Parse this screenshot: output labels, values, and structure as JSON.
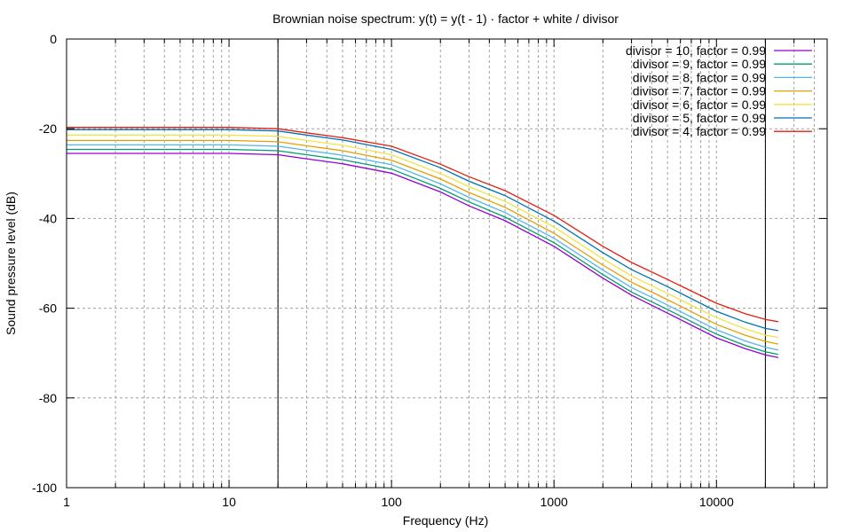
{
  "chart_data": {
    "type": "line",
    "title": "Brownian noise spectrum: y(t) = y(t - 1) · factor + white / divisor",
    "xlabel": "Frequency (Hz)",
    "ylabel": "Sound pressure level (dB)",
    "xscale": "log",
    "xlim": [
      1,
      48000
    ],
    "ylim": [
      -100,
      0
    ],
    "xticks": [
      {
        "value": 1,
        "label": "1"
      },
      {
        "value": 10,
        "label": "10"
      },
      {
        "value": 100,
        "label": "100"
      },
      {
        "value": 1000,
        "label": "1000"
      },
      {
        "value": 10000,
        "label": "10000"
      }
    ],
    "yticks": [
      {
        "value": 0,
        "label": "0"
      },
      {
        "value": -20,
        "label": "-20"
      },
      {
        "value": -40,
        "label": "-40"
      },
      {
        "value": -60,
        "label": "-60"
      },
      {
        "value": -80,
        "label": "-80"
      },
      {
        "value": -100,
        "label": "-100"
      }
    ],
    "grid": true,
    "reference_lines_x": [
      20,
      20000
    ],
    "legend_position": "top-right",
    "x": [
      1,
      2,
      5,
      10,
      20,
      30,
      50,
      100,
      200,
      300,
      500,
      1000,
      2000,
      3000,
      5000,
      10000,
      15000,
      20000,
      24000
    ],
    "series": [
      {
        "name": "divisor = 10, factor = 0.99",
        "color": "#9400d3",
        "values": [
          -25.5,
          -25.5,
          -25.5,
          -25.5,
          -25.8,
          -26.7,
          -27.8,
          -29.9,
          -34.1,
          -37.2,
          -40.5,
          -46.2,
          -53.3,
          -57.1,
          -61.1,
          -66.6,
          -69.0,
          -70.4,
          -71.0
        ]
      },
      {
        "name": "divisor = 9, factor = 0.99",
        "color": "#009e73",
        "values": [
          -24.6,
          -24.6,
          -24.6,
          -24.6,
          -24.9,
          -25.8,
          -26.9,
          -29.0,
          -33.3,
          -36.3,
          -39.7,
          -45.4,
          -52.5,
          -56.4,
          -60.3,
          -65.8,
          -68.3,
          -69.7,
          -70.3
        ]
      },
      {
        "name": "divisor = 8, factor = 0.99",
        "color": "#56b4e9",
        "values": [
          -23.6,
          -23.6,
          -23.6,
          -23.6,
          -23.9,
          -24.8,
          -25.9,
          -28.0,
          -32.3,
          -35.3,
          -38.7,
          -44.4,
          -51.5,
          -55.4,
          -59.3,
          -64.8,
          -67.3,
          -68.7,
          -69.3
        ]
      },
      {
        "name": "divisor = 7, factor = 0.99",
        "color": "#e69f00",
        "values": [
          -22.6,
          -22.6,
          -22.6,
          -22.6,
          -22.9,
          -23.8,
          -24.9,
          -27.0,
          -31.2,
          -34.2,
          -37.5,
          -43.3,
          -50.4,
          -54.2,
          -58.1,
          -63.6,
          -66.0,
          -67.4,
          -68.0
        ]
      },
      {
        "name": "divisor = 6, factor = 0.99",
        "color": "#f0e442",
        "values": [
          -21.4,
          -21.4,
          -21.4,
          -21.4,
          -21.7,
          -22.6,
          -23.7,
          -25.8,
          -30.0,
          -32.9,
          -36.2,
          -41.9,
          -49.0,
          -52.8,
          -56.7,
          -62.1,
          -64.6,
          -66.0,
          -66.5
        ]
      },
      {
        "name": "divisor = 5, factor = 0.99",
        "color": "#0072b2",
        "values": [
          -20.2,
          -20.2,
          -20.2,
          -20.2,
          -20.5,
          -21.4,
          -22.5,
          -24.6,
          -28.7,
          -31.7,
          -34.9,
          -40.6,
          -47.6,
          -51.4,
          -55.2,
          -60.7,
          -63.1,
          -64.5,
          -65.0
        ]
      },
      {
        "name": "divisor = 4, factor = 0.99",
        "color": "#e51e10",
        "values": [
          -19.7,
          -19.7,
          -19.7,
          -19.7,
          -20.0,
          -20.9,
          -22.0,
          -23.9,
          -27.9,
          -30.7,
          -33.8,
          -39.3,
          -46.2,
          -49.8,
          -53.6,
          -58.9,
          -61.2,
          -62.5,
          -63.0
        ]
      }
    ]
  }
}
